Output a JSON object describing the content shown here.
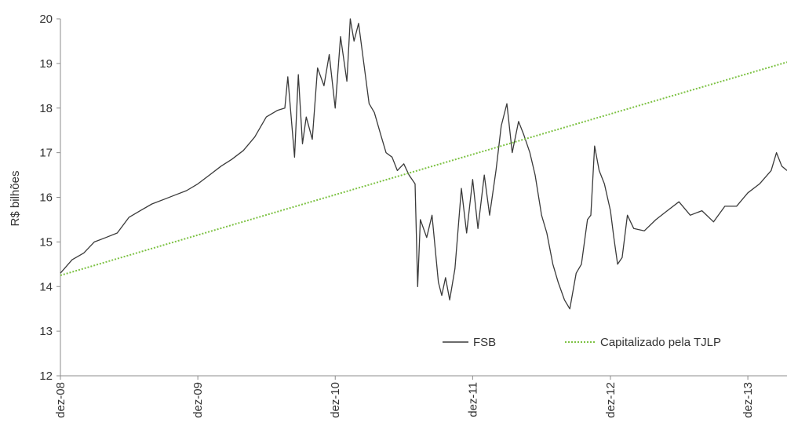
{
  "chart_data": {
    "type": "line",
    "ylabel": "R$ bilhões",
    "ylim": [
      12,
      20
    ],
    "yticks": [
      12,
      13,
      14,
      15,
      16,
      17,
      18,
      19,
      20
    ],
    "xlim": [
      "2008-12-01",
      "2014-03-15"
    ],
    "xticks": [
      {
        "date": "2008-12-01",
        "label": "dez-08"
      },
      {
        "date": "2009-12-01",
        "label": "dez-09"
      },
      {
        "date": "2010-12-01",
        "label": "dez-10"
      },
      {
        "date": "2011-12-01",
        "label": "dez-11"
      },
      {
        "date": "2012-12-01",
        "label": "dez-12"
      },
      {
        "date": "2013-12-01",
        "label": "dez-13"
      }
    ],
    "grid": false,
    "legend_position": "bottom-right",
    "series": [
      {
        "name": "FSB",
        "color": "#3a3a3a",
        "style": "solid",
        "points": [
          [
            "2008-12-01",
            14.3
          ],
          [
            "2009-01-01",
            14.6
          ],
          [
            "2009-02-01",
            14.75
          ],
          [
            "2009-03-01",
            15.0
          ],
          [
            "2009-04-01",
            15.1
          ],
          [
            "2009-05-01",
            15.2
          ],
          [
            "2009-06-01",
            15.55
          ],
          [
            "2009-07-01",
            15.7
          ],
          [
            "2009-08-01",
            15.85
          ],
          [
            "2009-09-01",
            15.95
          ],
          [
            "2009-10-01",
            16.05
          ],
          [
            "2009-11-01",
            16.15
          ],
          [
            "2009-12-01",
            16.3
          ],
          [
            "2010-01-01",
            16.5
          ],
          [
            "2010-02-01",
            16.7
          ],
          [
            "2010-03-01",
            16.85
          ],
          [
            "2010-04-01",
            17.05
          ],
          [
            "2010-05-01",
            17.35
          ],
          [
            "2010-06-01",
            17.8
          ],
          [
            "2010-07-01",
            17.95
          ],
          [
            "2010-07-20",
            18.0
          ],
          [
            "2010-07-28",
            18.7
          ],
          [
            "2010-08-05",
            17.9
          ],
          [
            "2010-08-15",
            16.9
          ],
          [
            "2010-08-25",
            18.75
          ],
          [
            "2010-09-05",
            17.2
          ],
          [
            "2010-09-15",
            17.8
          ],
          [
            "2010-10-01",
            17.3
          ],
          [
            "2010-10-15",
            18.9
          ],
          [
            "2010-11-01",
            18.5
          ],
          [
            "2010-11-15",
            19.2
          ],
          [
            "2010-12-01",
            18.0
          ],
          [
            "2010-12-15",
            19.6
          ],
          [
            "2011-01-01",
            18.6
          ],
          [
            "2011-01-10",
            20.0
          ],
          [
            "2011-01-20",
            19.5
          ],
          [
            "2011-02-01",
            19.9
          ],
          [
            "2011-02-15",
            19.0
          ],
          [
            "2011-03-01",
            18.1
          ],
          [
            "2011-03-15",
            17.9
          ],
          [
            "2011-04-01",
            17.4
          ],
          [
            "2011-04-15",
            17.0
          ],
          [
            "2011-05-01",
            16.9
          ],
          [
            "2011-05-15",
            16.6
          ],
          [
            "2011-06-01",
            16.75
          ],
          [
            "2011-06-15",
            16.5
          ],
          [
            "2011-07-01",
            16.3
          ],
          [
            "2011-07-08",
            14.0
          ],
          [
            "2011-07-15",
            15.5
          ],
          [
            "2011-08-01",
            15.1
          ],
          [
            "2011-08-15",
            15.6
          ],
          [
            "2011-09-01",
            14.1
          ],
          [
            "2011-09-10",
            13.8
          ],
          [
            "2011-09-20",
            14.2
          ],
          [
            "2011-10-01",
            13.7
          ],
          [
            "2011-10-15",
            14.4
          ],
          [
            "2011-11-01",
            16.2
          ],
          [
            "2011-11-15",
            15.2
          ],
          [
            "2011-12-01",
            16.4
          ],
          [
            "2011-12-15",
            15.3
          ],
          [
            "2012-01-01",
            16.5
          ],
          [
            "2012-01-15",
            15.6
          ],
          [
            "2012-02-01",
            16.6
          ],
          [
            "2012-02-15",
            17.6
          ],
          [
            "2012-03-01",
            18.1
          ],
          [
            "2012-03-15",
            17.0
          ],
          [
            "2012-04-01",
            17.7
          ],
          [
            "2012-04-15",
            17.4
          ],
          [
            "2012-05-01",
            17.0
          ],
          [
            "2012-05-15",
            16.5
          ],
          [
            "2012-06-01",
            15.6
          ],
          [
            "2012-06-15",
            15.2
          ],
          [
            "2012-07-01",
            14.5
          ],
          [
            "2012-07-15",
            14.1
          ],
          [
            "2012-08-01",
            13.7
          ],
          [
            "2012-08-15",
            13.5
          ],
          [
            "2012-09-01",
            14.3
          ],
          [
            "2012-09-15",
            14.5
          ],
          [
            "2012-10-01",
            15.5
          ],
          [
            "2012-10-10",
            15.6
          ],
          [
            "2012-10-20",
            17.15
          ],
          [
            "2012-11-01",
            16.6
          ],
          [
            "2012-11-15",
            16.3
          ],
          [
            "2012-12-01",
            15.7
          ],
          [
            "2012-12-10",
            15.1
          ],
          [
            "2012-12-20",
            14.5
          ],
          [
            "2013-01-01",
            14.65
          ],
          [
            "2013-01-15",
            15.6
          ],
          [
            "2013-02-01",
            15.3
          ],
          [
            "2013-03-01",
            15.25
          ],
          [
            "2013-04-01",
            15.5
          ],
          [
            "2013-05-01",
            15.7
          ],
          [
            "2013-06-01",
            15.9
          ],
          [
            "2013-07-01",
            15.6
          ],
          [
            "2013-08-01",
            15.7
          ],
          [
            "2013-09-01",
            15.45
          ],
          [
            "2013-10-01",
            15.8
          ],
          [
            "2013-11-01",
            15.8
          ],
          [
            "2013-12-01",
            16.1
          ],
          [
            "2014-01-01",
            16.3
          ],
          [
            "2014-02-01",
            16.6
          ],
          [
            "2014-02-15",
            17.0
          ],
          [
            "2014-03-01",
            16.7
          ],
          [
            "2014-03-15",
            16.6
          ]
        ]
      },
      {
        "name": "Capitalizado pela TJLP",
        "color": "#7dc244",
        "style": "dotted",
        "points": [
          [
            "2008-12-01",
            14.25
          ],
          [
            "2014-03-15",
            19.03
          ]
        ]
      }
    ]
  }
}
